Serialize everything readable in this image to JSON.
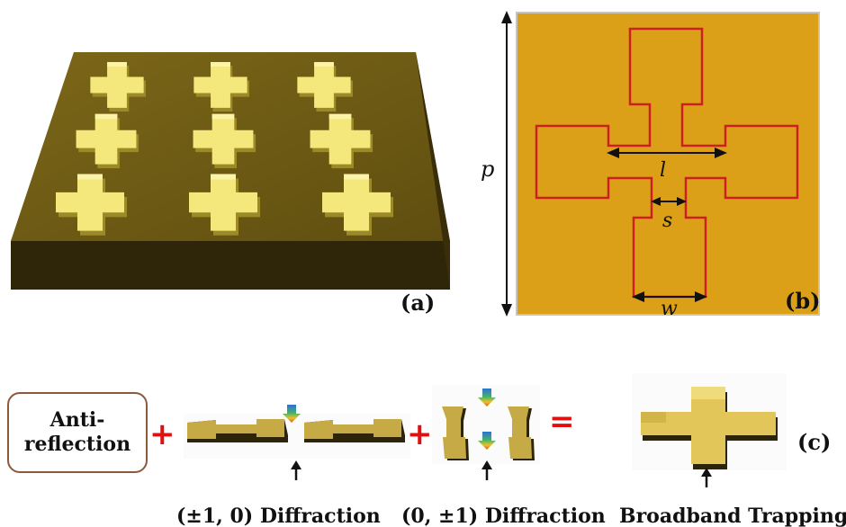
{
  "panel_a": {
    "label": "(a)"
  },
  "panel_b": {
    "label": "(b)",
    "dimensions": {
      "period": "p",
      "length": "l",
      "gap": "s",
      "width": "w"
    }
  },
  "panel_c": {
    "label": "(c)",
    "anti_reflection": "Anti-\nreflection",
    "operators": {
      "plus_1": "+",
      "plus_2": "+",
      "equals": "="
    },
    "captions": {
      "diffraction_x": "(±1, 0) Diffraction",
      "diffraction_y": "(0, ±1) Diffraction",
      "broadband": "Broadband Trapping"
    }
  },
  "colors": {
    "substrate_top": "#6e5a14",
    "substrate_side": "#2e2408",
    "cross_top": "#f6ea80",
    "cross_side": "#a8952d",
    "unit_cell_bg": "#dca018",
    "unit_outline": "#cc1f1f",
    "operator": "#e01010"
  }
}
